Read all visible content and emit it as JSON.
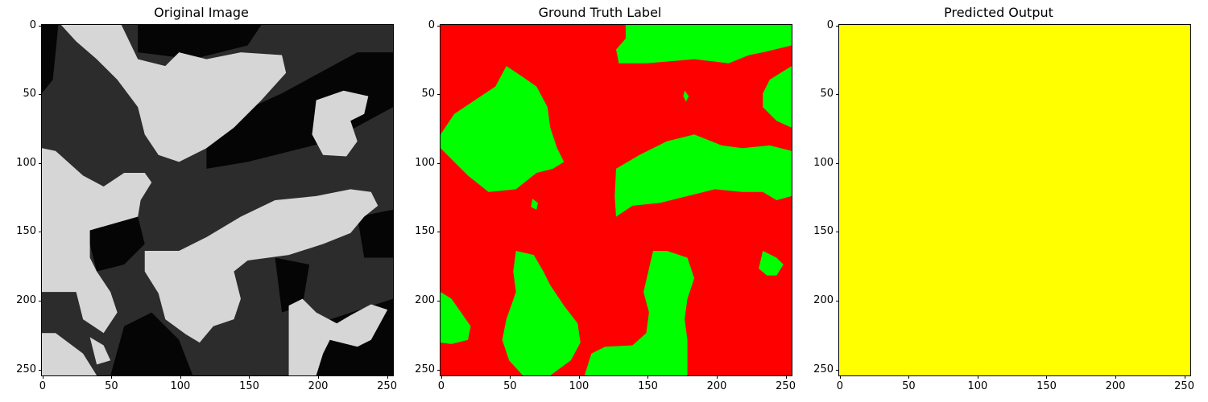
{
  "panels": [
    {
      "title": "Original Image",
      "kind": "grayscale",
      "xticks": [
        "0",
        "50",
        "100",
        "150",
        "200",
        "250"
      ],
      "yticks": [
        "0",
        "50",
        "100",
        "150",
        "200",
        "250"
      ]
    },
    {
      "title": "Ground Truth Label",
      "kind": "label-map",
      "xticks": [
        "0",
        "50",
        "100",
        "150",
        "200",
        "250"
      ],
      "yticks": [
        "0",
        "50",
        "100",
        "150",
        "200",
        "250"
      ]
    },
    {
      "title": "Predicted Output",
      "kind": "uniform",
      "xticks": [
        "0",
        "50",
        "100",
        "150",
        "200",
        "250"
      ],
      "yticks": [
        "0",
        "50",
        "100",
        "150",
        "200",
        "250"
      ]
    }
  ],
  "image_size": 256,
  "colors": {
    "gray_background": "#2c2c2c",
    "gray_dark_region": "#050505",
    "gray_bright_region": "#d6d6d6",
    "label_red": "#ff0000",
    "label_green": "#00ff00",
    "predicted_yellow": "#ffff00"
  }
}
